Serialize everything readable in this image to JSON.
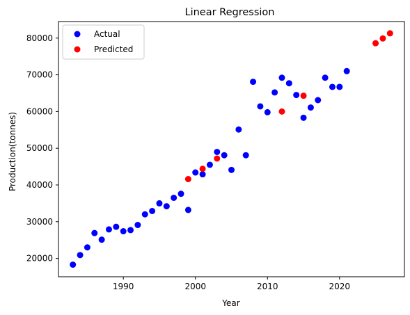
{
  "chart_data": {
    "type": "scatter",
    "title": "Linear Regression",
    "xlabel": "Year",
    "ylabel": "Production(tonnes)",
    "xlim": [
      1981,
      2029
    ],
    "ylim": [
      15000,
      84500
    ],
    "x_ticks": [
      1990,
      2000,
      2010,
      2020
    ],
    "y_ticks": [
      20000,
      30000,
      40000,
      50000,
      60000,
      70000,
      80000
    ],
    "grid": false,
    "legend_position": "top-left",
    "series": [
      {
        "name": "Actual",
        "color": "#0000ff",
        "points": [
          [
            1983,
            18300
          ],
          [
            1984,
            20900
          ],
          [
            1985,
            23000
          ],
          [
            1986,
            26900
          ],
          [
            1987,
            25100
          ],
          [
            1988,
            27900
          ],
          [
            1989,
            28600
          ],
          [
            1990,
            27400
          ],
          [
            1991,
            27700
          ],
          [
            1992,
            29100
          ],
          [
            1993,
            32000
          ],
          [
            1994,
            32900
          ],
          [
            1995,
            35000
          ],
          [
            1996,
            34200
          ],
          [
            1997,
            36500
          ],
          [
            1998,
            37600
          ],
          [
            1999,
            33200
          ],
          [
            2000,
            43400
          ],
          [
            2001,
            42900
          ],
          [
            2002,
            45500
          ],
          [
            2003,
            49000
          ],
          [
            2004,
            48100
          ],
          [
            2005,
            44100
          ],
          [
            2006,
            55100
          ],
          [
            2007,
            48100
          ],
          [
            2008,
            68100
          ],
          [
            2009,
            61400
          ],
          [
            2010,
            59800
          ],
          [
            2011,
            65200
          ],
          [
            2012,
            69200
          ],
          [
            2013,
            67700
          ],
          [
            2014,
            64500
          ],
          [
            2015,
            58300
          ],
          [
            2016,
            61100
          ],
          [
            2017,
            63100
          ],
          [
            2018,
            69200
          ],
          [
            2019,
            66700
          ],
          [
            2020,
            66700
          ],
          [
            2021,
            71000
          ]
        ]
      },
      {
        "name": "Predicted",
        "color": "#ff0000",
        "points": [
          [
            1999,
            41600
          ],
          [
            2001,
            44400
          ],
          [
            2003,
            47200
          ],
          [
            2012,
            60000
          ],
          [
            2015,
            64300
          ],
          [
            2025,
            78600
          ],
          [
            2026,
            79900
          ],
          [
            2027,
            81300
          ]
        ]
      }
    ]
  }
}
